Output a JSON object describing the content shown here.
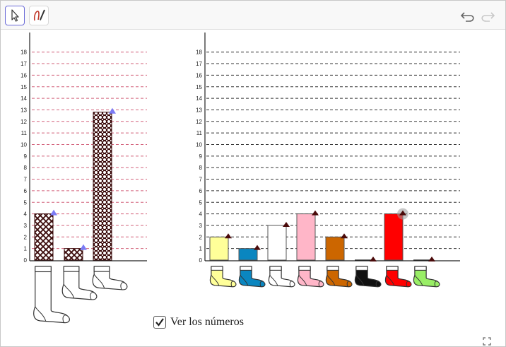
{
  "toolbar": {
    "tools": [
      {
        "name": "move-tool",
        "icon": "arrow-cursor-icon",
        "selected": true
      },
      {
        "name": "pen-tool",
        "icon": "pen-icon",
        "selected": false
      }
    ],
    "actions": [
      {
        "name": "undo",
        "icon": "undo-icon",
        "enabled": true
      },
      {
        "name": "redo",
        "icon": "redo-icon",
        "enabled": false
      }
    ]
  },
  "colors": {
    "left_grid": "#d2607a",
    "right_grid": "#333333",
    "handle_blue": "#7b7bf5",
    "handle_dark": "#4a0a0a"
  },
  "chart_data": [
    {
      "type": "bar",
      "y_ticks": [
        "0",
        "1",
        "2",
        "3",
        "4",
        "5",
        "6",
        "7",
        "8",
        "9",
        "10",
        "11",
        "12",
        "13",
        "14",
        "15",
        "16",
        "17",
        "18"
      ],
      "ylim": [
        0,
        18
      ],
      "grid": true,
      "categories": [
        "long-sock",
        "mid-sock",
        "short-sock"
      ],
      "values": [
        4,
        1,
        12.8
      ],
      "patterns": [
        "crosshatch",
        "crosshatch",
        "dots"
      ]
    },
    {
      "type": "bar",
      "y_ticks": [
        "0",
        "1",
        "2",
        "3",
        "4",
        "5",
        "6",
        "7",
        "8",
        "9",
        "10",
        "11",
        "12",
        "13",
        "14",
        "15",
        "16",
        "17",
        "18"
      ],
      "ylim": [
        0,
        18
      ],
      "grid": true,
      "categories": [
        "yellow-sock",
        "blue-sock",
        "white-sock",
        "pink-sock",
        "orange-sock",
        "black-sock",
        "red-sock",
        "green-sock"
      ],
      "values": [
        2,
        1,
        3,
        4,
        2,
        0,
        4,
        0
      ],
      "colors": [
        "#ffff99",
        "#0a86c0",
        "#ffffff",
        "#ffb6c8",
        "#cc6600",
        "#000000",
        "#ff0000",
        "#99ee66"
      ]
    }
  ],
  "checkbox": {
    "label": "Ver los números",
    "checked": true
  }
}
